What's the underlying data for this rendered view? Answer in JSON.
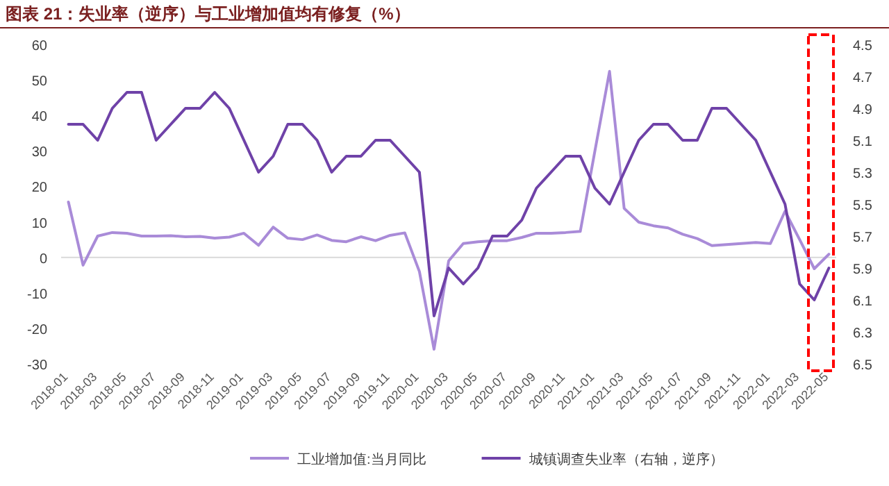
{
  "chart_data": {
    "type": "line",
    "title": "图表 21：失业率（逆序）与工业增加值均有修复（%）",
    "categories": [
      "2018-01",
      null,
      "2018-03",
      null,
      "2018-05",
      null,
      "2018-07",
      null,
      "2018-09",
      null,
      "2018-11",
      null,
      "2019-01",
      null,
      "2019-03",
      null,
      "2019-05",
      null,
      "2019-07",
      null,
      "2019-09",
      null,
      "2019-11",
      null,
      "2020-01",
      null,
      "2020-03",
      null,
      "2020-05",
      null,
      "2020-07",
      null,
      "2020-09",
      null,
      "2020-11",
      null,
      "2021-01",
      null,
      "2021-03",
      null,
      "2021-05",
      null,
      "2021-07",
      null,
      "2021-09",
      null,
      "2021-11",
      null,
      "2022-01",
      null,
      "2022-03",
      null,
      "2022-05"
    ],
    "series": [
      {
        "name": "工业增加值:当月同比",
        "color": "#a98bd8",
        "values": [
          15.6,
          -2.2,
          6.0,
          7.0,
          6.8,
          6.0,
          6.0,
          6.1,
          5.8,
          5.9,
          5.4,
          5.7,
          6.8,
          3.4,
          8.5,
          5.4,
          5.0,
          6.3,
          4.8,
          4.4,
          5.8,
          4.7,
          6.2,
          6.9,
          -4.0,
          -25.9,
          -1.0,
          3.9,
          4.4,
          4.7,
          4.7,
          5.6,
          6.8,
          6.8,
          7.0,
          7.3,
          30.0,
          52.4,
          13.8,
          9.9,
          8.9,
          8.3,
          6.5,
          5.3,
          3.3,
          3.6,
          3.9,
          4.2,
          3.9,
          13.0,
          5.0,
          -3.2,
          0.9
        ]
      },
      {
        "name": "城镇调查失业率（右轴，逆序）",
        "color": "#6f42a8",
        "axis": "y2",
        "values": [
          5.0,
          5.0,
          5.1,
          4.9,
          4.8,
          4.8,
          5.1,
          5.0,
          4.9,
          4.9,
          4.8,
          4.9,
          5.1,
          5.3,
          5.2,
          5.0,
          5.0,
          5.1,
          5.3,
          5.2,
          5.2,
          5.1,
          5.1,
          5.2,
          5.3,
          6.2,
          5.9,
          6.0,
          5.9,
          5.7,
          5.7,
          5.6,
          5.4,
          5.3,
          5.2,
          5.2,
          5.4,
          5.5,
          5.3,
          5.1,
          5.0,
          5.0,
          5.1,
          5.1,
          4.9,
          4.9,
          5.0,
          5.1,
          5.3,
          5.5,
          6.0,
          6.1,
          5.9
        ]
      }
    ],
    "ylim": [
      -30,
      60
    ],
    "yticks": [
      -30,
      -20,
      -10,
      0,
      10,
      20,
      30,
      40,
      50,
      60
    ],
    "y2lim": [
      6.5,
      4.5
    ],
    "y2ticks": [
      {
        "value": 6.5,
        "label": "6.5"
      },
      {
        "value": 6.3,
        "label": "6.3"
      },
      {
        "value": 6.1,
        "label": "6.1"
      },
      {
        "value": 5.9,
        "label": "5.9"
      },
      {
        "value": 5.7,
        "label": "5.7"
      },
      {
        "value": 5.5,
        "label": "5.5"
      },
      {
        "value": 5.3,
        "label": "5.3"
      },
      {
        "value": 5.1,
        "label": "5.1"
      },
      {
        "value": 4.9,
        "label": "4.9"
      },
      {
        "value": 4.7,
        "label": "4.7"
      },
      {
        "value": 4.5,
        "label": "4.5"
      }
    ],
    "ref_lines": [
      {
        "axis": "y",
        "value": 0,
        "color": "#d9d9d9"
      }
    ],
    "legend": "bottom"
  }
}
